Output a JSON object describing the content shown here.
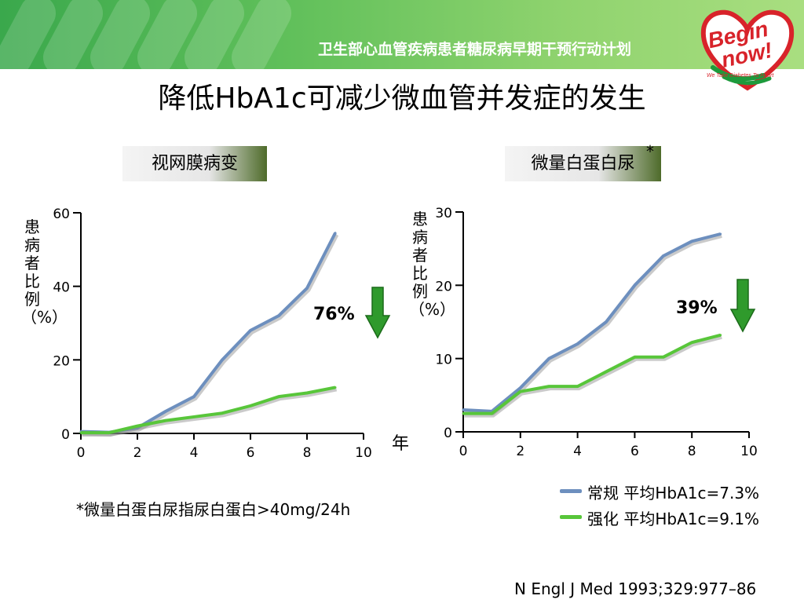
{
  "banner": {
    "program": "卫生部心血管疾病患者糖尿病早期干预行动计划"
  },
  "logo": {
    "line1": "Begin",
    "line2": "now!",
    "tagline": "We Take Diabetes To Heart"
  },
  "title": "降低HbA1c可减少微血管并发症的发生",
  "panels": {
    "retinopathy": {
      "label": "视网膜病变",
      "reduction": "76%",
      "ylabel": "患病者比例（%）",
      "xunit": "年"
    },
    "microalbuminuria": {
      "label": "微量白蛋白尿",
      "star": "*",
      "reduction": "39%",
      "ylabel": "患病者比例（%）"
    }
  },
  "footnote": "*微量白蛋白尿指尿白蛋白>40mg/24h",
  "legend": [
    {
      "label": "常规 平均HbA1c=7.3%",
      "color": "#6d8fbe"
    },
    {
      "label": "强化 平均HbA1c=9.1%",
      "color": "#58c63a"
    }
  ],
  "citation": "N Engl J Med 1993;329:977–86",
  "colors": {
    "conventional": "#6d8fbe",
    "intensive": "#58c63a",
    "arrow": "#2f9a2c"
  },
  "icons": [
    "down-arrow-icon"
  ],
  "chart_data": [
    {
      "type": "line",
      "title": "视网膜病变",
      "xlabel": "年",
      "ylabel": "患病者比例（%）",
      "xlim": [
        0,
        10
      ],
      "ylim": [
        0,
        60
      ],
      "xticks": [
        0,
        2,
        4,
        6,
        8,
        10
      ],
      "yticks": [
        0,
        20,
        40,
        60
      ],
      "grid": false,
      "series": [
        {
          "name": "常规 平均HbA1c=7.3%",
          "x": [
            0,
            1,
            2,
            3,
            4,
            5,
            6,
            7,
            8,
            9
          ],
          "y": [
            0.5,
            0.3,
            1.5,
            6,
            10,
            20,
            28,
            32,
            39.5,
            54.5
          ]
        },
        {
          "name": "强化 平均HbA1c=9.1%",
          "x": [
            0,
            1,
            2,
            3,
            4,
            5,
            6,
            7,
            8,
            9
          ],
          "y": [
            0.2,
            0.2,
            2,
            3.5,
            4.5,
            5.5,
            7.5,
            10,
            11,
            12.5
          ]
        }
      ],
      "annotations": [
        "76%"
      ]
    },
    {
      "type": "line",
      "title": "微量白蛋白尿",
      "xlabel": "",
      "ylabel": "患病者比例（%）",
      "xlim": [
        0,
        10
      ],
      "ylim": [
        0,
        30
      ],
      "xticks": [
        0,
        2,
        4,
        6,
        8,
        10
      ],
      "yticks": [
        0,
        10,
        20,
        30
      ],
      "grid": false,
      "series": [
        {
          "name": "常规 平均HbA1c=7.3%",
          "x": [
            0,
            1,
            2,
            3,
            4,
            5,
            6,
            7,
            8,
            9
          ],
          "y": [
            3,
            2.8,
            6,
            10,
            12,
            15,
            20,
            24,
            26,
            27
          ]
        },
        {
          "name": "强化 平均HbA1c=9.1%",
          "x": [
            0,
            1,
            2,
            3,
            4,
            5,
            6,
            7,
            8,
            9
          ],
          "y": [
            2.5,
            2.5,
            5.5,
            6.2,
            6.2,
            8.2,
            10.2,
            10.2,
            12.2,
            13.2
          ]
        }
      ],
      "annotations": [
        "39%"
      ]
    }
  ]
}
